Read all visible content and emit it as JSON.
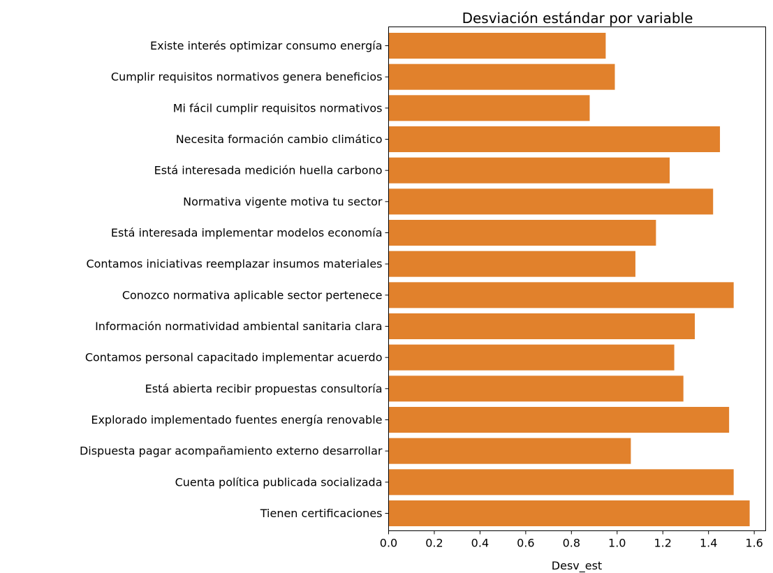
{
  "chart_data": {
    "type": "bar",
    "orientation": "horizontal",
    "title": "Desviación estándar por variable",
    "xlabel": "Desv_est",
    "ylabel": "",
    "xlim": [
      0,
      1.65
    ],
    "xticks": [
      "0.0",
      "0.2",
      "0.4",
      "0.6",
      "0.8",
      "1.0",
      "1.2",
      "1.4",
      "1.6"
    ],
    "bar_color": "#e1812c",
    "grid": false,
    "categories": [
      "Existe interés optimizar consumo energía",
      "Cumplir requisitos normativos genera beneficios",
      "Mi fácil cumplir requisitos normativos",
      "Necesita formación cambio climático",
      "Está interesada medición huella carbono",
      "Normativa vigente motiva tu sector",
      "Está interesada implementar modelos economía",
      "Contamos iniciativas reemplazar insumos materiales",
      "Conozco normativa aplicable sector pertenece",
      "Información normatividad ambiental sanitaria clara",
      "Contamos personal capacitado implementar acuerdo",
      "Está abierta recibir propuestas consultoría",
      "Explorado implementado fuentes energía renovable",
      "Dispuesta pagar acompañamiento externo desarrollar",
      "Cuenta política publicada socializada",
      "Tienen certificaciones"
    ],
    "values": [
      0.95,
      0.99,
      0.88,
      1.45,
      1.23,
      1.42,
      1.17,
      1.08,
      1.51,
      1.34,
      1.25,
      1.29,
      1.49,
      1.06,
      1.51,
      1.58
    ]
  }
}
